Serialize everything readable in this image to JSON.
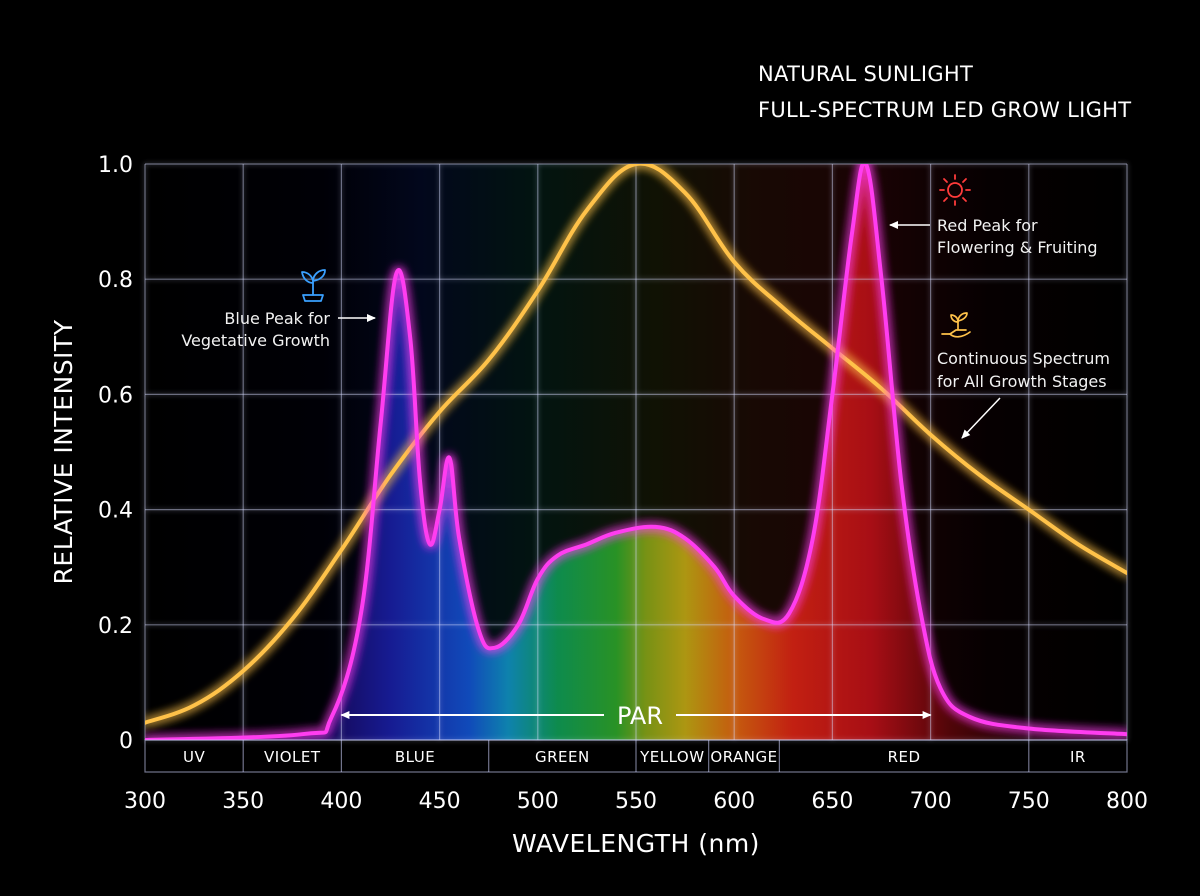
{
  "chart_data": {
    "type": "line",
    "xlabel": "WAVELENGTH (nm)",
    "ylabel": "RELATIVE INTENSITY",
    "xlim": [
      300,
      800
    ],
    "ylim": [
      0,
      1.0
    ],
    "x_ticks": [
      "300",
      "350",
      "400",
      "450",
      "500",
      "550",
      "600",
      "650",
      "700",
      "750",
      "800"
    ],
    "y_ticks": [
      "0",
      "0.2",
      "0.4",
      "0.6",
      "0.8",
      "1.0"
    ],
    "grid": true,
    "legend_position": "top-right",
    "x": [
      300,
      325,
      350,
      375,
      400,
      425,
      450,
      475,
      500,
      525,
      550,
      575,
      600,
      625,
      650,
      675,
      700,
      725,
      750,
      775,
      800
    ],
    "series": [
      {
        "name": "NATURAL SUNLIGHT",
        "color": "#ffc24a",
        "x": [
          300,
          325,
          350,
          375,
          400,
          425,
          450,
          475,
          500,
          525,
          550,
          575,
          600,
          625,
          650,
          675,
          700,
          725,
          750,
          775,
          800
        ],
        "values": [
          0.03,
          0.06,
          0.12,
          0.21,
          0.33,
          0.46,
          0.57,
          0.66,
          0.78,
          0.92,
          1.0,
          0.95,
          0.83,
          0.75,
          0.68,
          0.61,
          0.53,
          0.46,
          0.4,
          0.34,
          0.29
        ]
      },
      {
        "name": "FULL-SPECTRUM LED GROW LIGHT",
        "color": "#ff3df0",
        "x": [
          300,
          380,
          395,
          410,
          420,
          428,
          435,
          440,
          445,
          450,
          455,
          460,
          470,
          478,
          490,
          500,
          510,
          525,
          540,
          560,
          575,
          590,
          600,
          615,
          628,
          640,
          650,
          660,
          667,
          675,
          685,
          695,
          705,
          720,
          750,
          800
        ],
        "values": [
          0.0,
          0.01,
          0.04,
          0.22,
          0.55,
          0.81,
          0.7,
          0.45,
          0.34,
          0.4,
          0.49,
          0.35,
          0.19,
          0.16,
          0.2,
          0.28,
          0.32,
          0.34,
          0.36,
          0.37,
          0.35,
          0.3,
          0.25,
          0.21,
          0.22,
          0.35,
          0.6,
          0.88,
          1.0,
          0.8,
          0.45,
          0.22,
          0.09,
          0.04,
          0.02,
          0.01
        ]
      }
    ],
    "bands": [
      {
        "label": "UV",
        "from": 300,
        "to": 350
      },
      {
        "label": "VIOLET",
        "from": 350,
        "to": 400
      },
      {
        "label": "BLUE",
        "from": 400,
        "to": 475
      },
      {
        "label": "GREEN",
        "from": 475,
        "to": 550
      },
      {
        "label": "YELLOW",
        "from": 550,
        "to": 587
      },
      {
        "label": "ORANGE",
        "from": 587,
        "to": 623
      },
      {
        "label": "RED",
        "from": 623,
        "to": 750
      },
      {
        "label": "IR",
        "from": 750,
        "to": 800
      }
    ],
    "par": {
      "label": "PAR",
      "from": 400,
      "to": 700
    },
    "annotations": [
      {
        "id": "blue",
        "lines": [
          "Blue Peak for",
          "Vegetative Growth"
        ],
        "icon": "seedling-icon"
      },
      {
        "id": "red",
        "lines": [
          "Red Peak for",
          "Flowering & Fruiting"
        ],
        "icon": "sun-icon"
      },
      {
        "id": "continuous",
        "lines": [
          "Continuous Spectrum",
          "for All Growth Stages"
        ],
        "icon": "hand-plant-icon"
      }
    ]
  }
}
